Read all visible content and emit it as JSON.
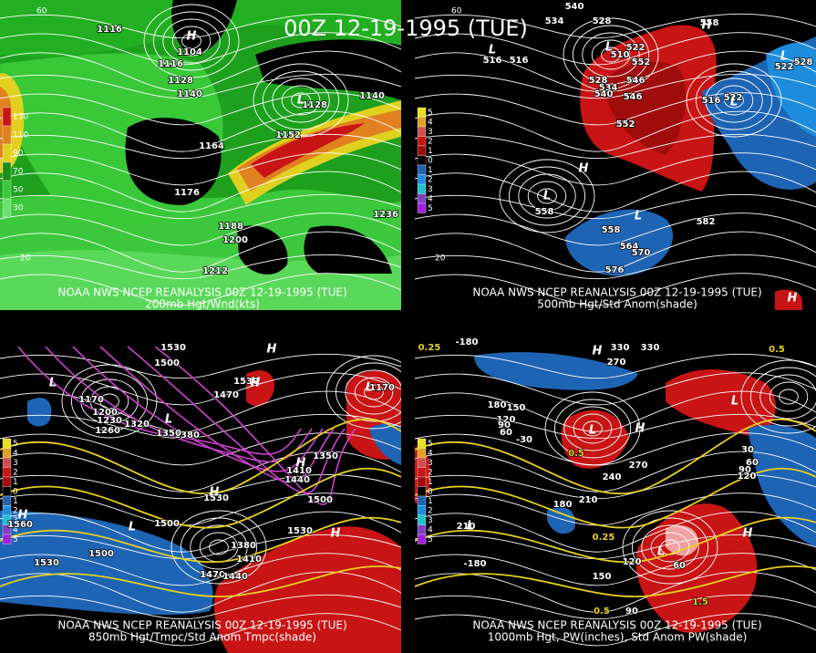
{
  "title": "00Z 12-19-1995 (TUE)",
  "panels": [
    {
      "caption": "NOAA NWS NCEP REANALYSIS 00Z 12-19-1995 (TUE)",
      "subtitle": "200mb Hgt/Wnd(kts)",
      "legend": [
        130,
        110,
        90,
        70,
        50,
        30
      ],
      "latitudes": [
        60,
        20
      ],
      "labels": [
        1116,
        1104,
        1116,
        1128,
        1140,
        1128,
        1140,
        1152,
        1164,
        1176,
        1188,
        1200,
        1212,
        1236
      ],
      "centers": [
        "H",
        "L"
      ]
    },
    {
      "caption": "NOAA NWS NCEP REANALYSIS 00Z 12-19-1995 (TUE)",
      "subtitle": "500mb Hgt/Std Anom(shade)",
      "legend": [
        5,
        4,
        3,
        2,
        1,
        0,
        1,
        2,
        3,
        4,
        5
      ],
      "latitudes": [
        60,
        20
      ],
      "labels": [
        540,
        534,
        528,
        558,
        516,
        516,
        510,
        522,
        552,
        528,
        534,
        540,
        546,
        546,
        552,
        516,
        522,
        528,
        522,
        558,
        564,
        570,
        576,
        582,
        558
      ],
      "centers": [
        "L",
        "H",
        "L",
        "L",
        "H",
        "L",
        "L",
        "L",
        "H"
      ]
    },
    {
      "caption": "NOAA NWS NCEP REANALYSIS 00Z 12-19-1995 (TUE)",
      "subtitle": "850mb Hgt/Tmpc/Std Anom Tmpc(shade)",
      "legend": [
        5,
        4,
        3,
        2,
        1,
        0,
        1,
        2,
        3,
        4,
        5
      ],
      "latitudes": [],
      "labels": [
        1530,
        1500,
        1530,
        1470,
        1170,
        1170,
        1200,
        1230,
        1260,
        1320,
        1380,
        1350,
        1410,
        1440,
        1530,
        1500,
        1500,
        1530,
        1560,
        1500,
        1530,
        1470,
        1440,
        1380,
        1410,
        1350
      ],
      "centers": [
        "L",
        "H",
        "L",
        "H",
        "L",
        "H",
        "H",
        "L",
        "H",
        "H"
      ]
    },
    {
      "caption": "NOAA NWS NCEP REANALYSIS 00Z 12-19-1995 (TUE)",
      "subtitle": "1000mb Hgt, PW(inches), Std Anom PW(shade)",
      "legend": [
        5,
        4,
        3,
        2,
        1,
        0,
        1,
        2,
        3,
        4,
        5
      ],
      "latitudes": [],
      "labels": [
        -180,
        0.25,
        330,
        330,
        270,
        0.5,
        180,
        150,
        120,
        90,
        60,
        -30,
        0.5,
        240,
        270,
        210,
        180,
        0.25,
        150,
        120,
        60,
        1.5,
        0.5,
        90,
        30,
        60,
        90,
        120,
        210,
        -180
      ],
      "centers": [
        "L",
        "L",
        "H",
        "L",
        "H",
        "H",
        "L"
      ]
    }
  ]
}
